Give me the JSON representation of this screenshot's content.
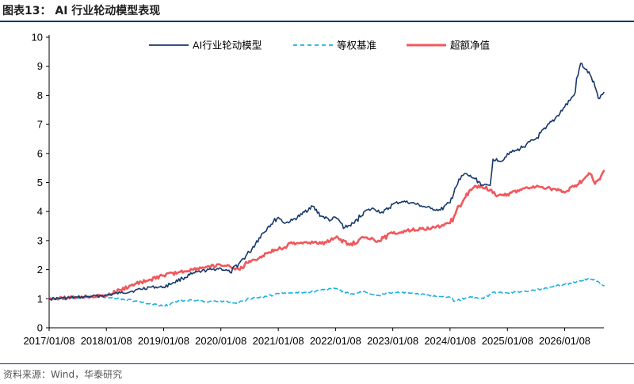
{
  "figure": {
    "title": "图表13：  AI 行业轮动模型表现",
    "source": "资料来源：Wind，华泰研究"
  },
  "chart_data": {
    "type": "line",
    "title": "",
    "xlabel": "",
    "ylabel": "",
    "ylim": [
      0,
      10
    ],
    "yticks": [
      0,
      1,
      2,
      3,
      4,
      5,
      6,
      7,
      8,
      9,
      10
    ],
    "xlim": [
      "2017/01/08",
      "2026/09/15"
    ],
    "xticks": [
      "2017/01/08",
      "2018/01/08",
      "2019/01/08",
      "2020/01/08",
      "2021/01/08",
      "2022/01/08",
      "2023/01/08",
      "2024/01/08",
      "2025/01/08",
      "2026/01/08"
    ],
    "grid": false,
    "legend": "top",
    "series": [
      {
        "name": "AI行业轮动模型",
        "color": "#16386b",
        "style": "solid",
        "x": [
          "2017/01/08",
          "2017/04/08",
          "2017/07/08",
          "2017/10/08",
          "2018/01/08",
          "2018/04/08",
          "2018/07/08",
          "2018/10/08",
          "2019/01/08",
          "2019/03/08",
          "2019/05/08",
          "2019/07/08",
          "2019/09/08",
          "2019/11/08",
          "2020/01/08",
          "2020/03/08",
          "2020/05/08",
          "2020/07/08",
          "2020/09/08",
          "2020/11/08",
          "2021/01/08",
          "2021/02/20",
          "2021/04/08",
          "2021/06/08",
          "2021/08/08",
          "2021/10/08",
          "2021/12/08",
          "2022/01/08",
          "2022/03/08",
          "2022/05/08",
          "2022/07/08",
          "2022/09/08",
          "2022/11/08",
          "2023/01/08",
          "2023/03/08",
          "2023/05/08",
          "2023/07/08",
          "2023/09/08",
          "2023/11/08",
          "2024/01/08",
          "2024/02/08",
          "2024/04/08",
          "2024/06/08",
          "2024/08/08",
          "2024/09/20",
          "2024/10/08",
          "2024/12/08",
          "2025/01/08",
          "2025/03/08",
          "2025/05/08",
          "2025/07/08",
          "2025/09/08",
          "2025/11/08",
          "2026/01/08",
          "2026/03/08",
          "2026/04/20",
          "2026/05/20",
          "2026/06/20",
          "2026/07/20",
          "2026/08/10",
          "2026/09/15"
        ],
        "values": [
          1.0,
          1.02,
          1.05,
          1.08,
          1.12,
          1.2,
          1.28,
          1.4,
          1.4,
          1.55,
          1.7,
          1.85,
          1.95,
          2.0,
          2.05,
          1.9,
          2.25,
          2.6,
          3.1,
          3.5,
          3.8,
          3.6,
          3.7,
          3.9,
          4.2,
          3.85,
          3.7,
          3.8,
          3.45,
          3.6,
          4.0,
          4.1,
          3.95,
          4.25,
          4.35,
          4.3,
          4.2,
          4.1,
          4.05,
          4.3,
          4.8,
          5.3,
          5.15,
          4.9,
          4.9,
          5.8,
          5.75,
          6.0,
          6.1,
          6.3,
          6.5,
          6.85,
          7.2,
          7.6,
          8.0,
          9.1,
          8.9,
          8.7,
          8.3,
          7.9,
          8.1
        ]
      },
      {
        "name": "等权基准",
        "color": "#1ab0e0",
        "style": "dashed",
        "x": [
          "2017/01/08",
          "2017/04/08",
          "2017/07/08",
          "2017/10/08",
          "2018/01/08",
          "2018/04/08",
          "2018/07/08",
          "2018/10/08",
          "2019/01/08",
          "2019/04/08",
          "2019/07/08",
          "2019/10/08",
          "2020/01/08",
          "2020/04/08",
          "2020/07/08",
          "2020/10/08",
          "2021/01/08",
          "2021/04/08",
          "2021/07/08",
          "2021/10/08",
          "2022/01/08",
          "2022/04/08",
          "2022/07/08",
          "2022/10/08",
          "2023/01/08",
          "2023/04/08",
          "2023/07/08",
          "2023/10/08",
          "2024/01/08",
          "2024/02/08",
          "2024/05/08",
          "2024/08/08",
          "2024/10/08",
          "2025/01/08",
          "2025/04/08",
          "2025/07/08",
          "2025/10/08",
          "2026/01/08",
          "2026/04/08",
          "2026/06/08",
          "2026/08/08",
          "2026/09/15"
        ],
        "values": [
          1.0,
          0.98,
          1.02,
          1.05,
          1.06,
          1.0,
          0.92,
          0.82,
          0.75,
          0.92,
          0.95,
          0.9,
          0.92,
          0.85,
          1.0,
          1.05,
          1.18,
          1.2,
          1.22,
          1.3,
          1.35,
          1.15,
          1.25,
          1.12,
          1.22,
          1.2,
          1.15,
          1.08,
          1.05,
          0.92,
          1.05,
          1.0,
          1.22,
          1.2,
          1.25,
          1.3,
          1.4,
          1.5,
          1.6,
          1.7,
          1.6,
          1.45
        ]
      },
      {
        "name": "超额净值",
        "color": "#f0585c",
        "style": "solid",
        "x": [
          "2017/01/08",
          "2017/04/08",
          "2017/07/08",
          "2017/10/08",
          "2018/01/08",
          "2018/04/08",
          "2018/07/08",
          "2018/10/08",
          "2019/01/08",
          "2019/04/08",
          "2019/07/08",
          "2019/10/08",
          "2020/01/08",
          "2020/03/08",
          "2020/05/08",
          "2020/07/08",
          "2020/09/08",
          "2020/11/08",
          "2021/01/08",
          "2021/04/08",
          "2021/07/08",
          "2021/10/08",
          "2022/01/08",
          "2022/04/08",
          "2022/07/08",
          "2022/10/08",
          "2023/01/08",
          "2023/04/08",
          "2023/07/08",
          "2023/10/08",
          "2024/01/08",
          "2024/03/08",
          "2024/05/08",
          "2024/07/08",
          "2024/09/20",
          "2024/11/08",
          "2025/01/08",
          "2025/04/08",
          "2025/07/08",
          "2025/10/08",
          "2026/01/08",
          "2026/03/08",
          "2026/05/08",
          "2026/06/20",
          "2026/07/20",
          "2026/08/20",
          "2026/09/15"
        ],
        "values": [
          1.0,
          1.03,
          1.05,
          1.08,
          1.1,
          1.3,
          1.5,
          1.65,
          1.8,
          1.9,
          2.0,
          2.1,
          2.15,
          2.1,
          2.0,
          2.3,
          2.4,
          2.6,
          2.7,
          2.9,
          2.95,
          2.9,
          3.1,
          2.85,
          3.1,
          3.0,
          3.25,
          3.35,
          3.4,
          3.45,
          3.6,
          4.2,
          4.7,
          4.9,
          4.75,
          4.55,
          4.6,
          4.75,
          4.85,
          4.8,
          4.65,
          4.85,
          5.1,
          5.3,
          4.95,
          5.1,
          5.4
        ]
      }
    ]
  }
}
